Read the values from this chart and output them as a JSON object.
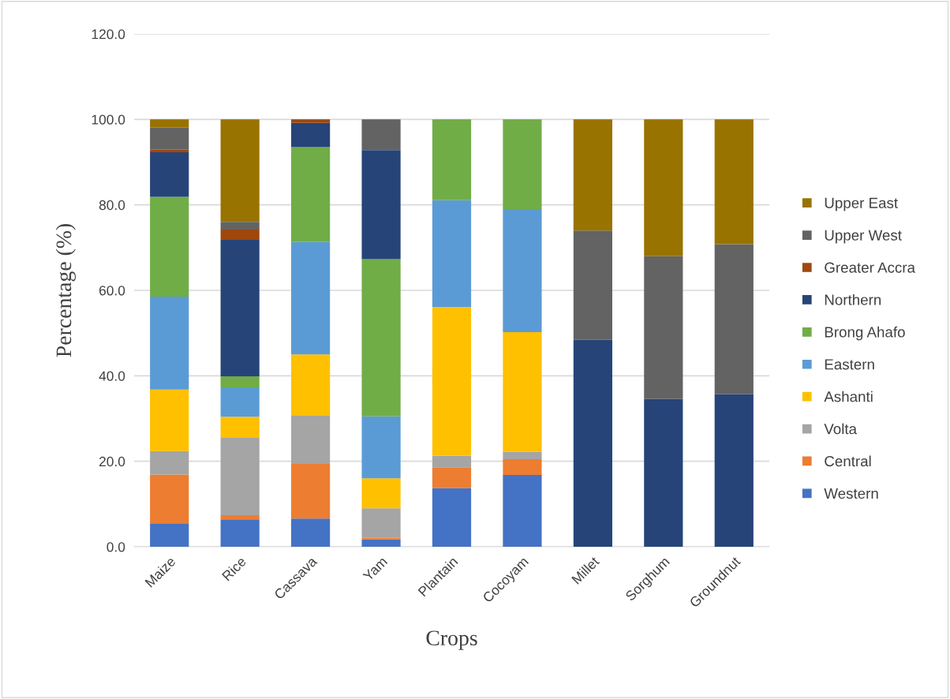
{
  "chart_data": {
    "type": "bar",
    "stacked": true,
    "xlabel": "Crops",
    "ylabel": "Percentage (%)",
    "categories": [
      "Maize",
      "Rice",
      "Cassava",
      "Yam",
      "Plantain",
      "Cocoyam",
      "Millet",
      "Sorghum",
      "Groundnut"
    ],
    "ylim": [
      0,
      120
    ],
    "yticks": [
      {
        "value": 0,
        "label": "0.0"
      },
      {
        "value": 20,
        "label": "20.0"
      },
      {
        "value": 40,
        "label": "40.0"
      },
      {
        "value": 60,
        "label": "60.0"
      },
      {
        "value": 80,
        "label": "80.0"
      },
      {
        "value": 100,
        "label": "100.0"
      },
      {
        "value": 120,
        "label": "120.0"
      }
    ],
    "grid": "y",
    "legend": "right",
    "series": [
      {
        "name": "Western",
        "color": "#4472c4",
        "values": [
          5.5,
          6.4,
          6.6,
          1.7,
          13.7,
          16.8,
          null,
          null,
          null
        ]
      },
      {
        "name": "Central",
        "color": "#ed7d31",
        "values": [
          11.4,
          1.0,
          12.8,
          0.4,
          4.9,
          3.7,
          null,
          null,
          null
        ]
      },
      {
        "name": "Volta",
        "color": "#a5a5a5",
        "values": [
          5.5,
          18.1,
          11.4,
          6.9,
          2.7,
          1.7,
          null,
          null,
          null
        ]
      },
      {
        "name": "Ashanti",
        "color": "#ffc000",
        "values": [
          14.4,
          4.9,
          14.2,
          7.0,
          34.8,
          28.0,
          null,
          null,
          null
        ]
      },
      {
        "name": "Eastern",
        "color": "#5b9bd5",
        "values": [
          21.7,
          6.9,
          26.3,
          14.5,
          25.0,
          28.8,
          null,
          null,
          null
        ]
      },
      {
        "name": "Brong Ahafo",
        "color": "#70ad47",
        "values": [
          23.4,
          2.6,
          22.2,
          36.8,
          18.9,
          21.0,
          null,
          null,
          null
        ]
      },
      {
        "name": "Northern",
        "color": "#264478",
        "values": [
          10.4,
          31.9,
          5.7,
          25.5,
          null,
          null,
          48.4,
          34.6,
          35.7
        ]
      },
      {
        "name": "Greater Accra",
        "color": "#9e480e",
        "values": [
          0.6,
          2.4,
          0.8,
          null,
          null,
          null,
          null,
          null,
          null
        ]
      },
      {
        "name": "Upper West",
        "color": "#636363",
        "values": [
          5.2,
          1.8,
          null,
          7.2,
          null,
          null,
          25.6,
          33.4,
          35.1
        ]
      },
      {
        "name": "Upper East",
        "color": "#997300",
        "values": [
          1.9,
          24.0,
          null,
          null,
          null,
          null,
          26.0,
          32.0,
          29.2
        ]
      }
    ]
  }
}
